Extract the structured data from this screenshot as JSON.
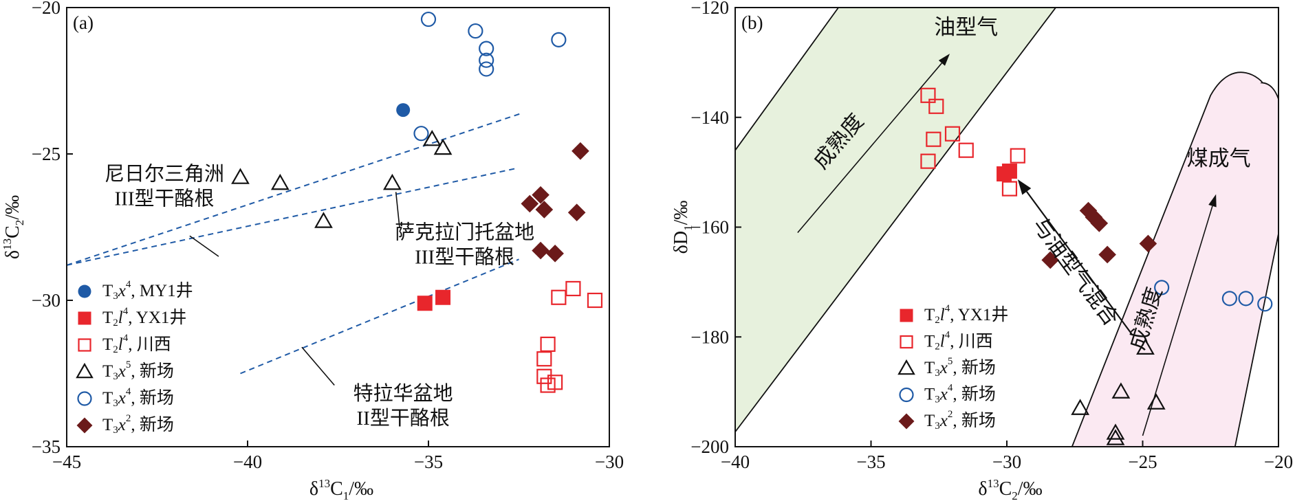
{
  "colors": {
    "blue": "#1f5aa6",
    "red": "#e8262c",
    "dark_red": "#6b1a1a",
    "black": "#111111",
    "oil_zone_fill": "#e7f1dd",
    "coal_zone_fill": "#fbe9f2"
  },
  "chart_data": [
    {
      "panel_label": "(a)",
      "type": "scatter",
      "xlabel": "δ13C1/‰",
      "ylabel": "δ13C2/‰",
      "xlim": [
        -45,
        -30
      ],
      "ylim": [
        -35,
        -20
      ],
      "x_ticks": [
        -45,
        -40,
        -35,
        -30
      ],
      "y_ticks": [
        -35,
        -30,
        -25,
        -20
      ],
      "grid": false,
      "legend_position": "bottom-left",
      "series": [
        {
          "name": "T3x4, MY1井",
          "marker": "filled-circle",
          "color": "#1f5aa6",
          "points": [
            [
              -35.7,
              -23.5
            ]
          ]
        },
        {
          "name": "T2l4, YX1井",
          "marker": "filled-square",
          "color": "#e8262c",
          "points": [
            [
              -35.1,
              -30.1
            ],
            [
              -34.6,
              -29.9
            ]
          ]
        },
        {
          "name": "T2l4, 川西",
          "marker": "open-square",
          "color": "#e8262c",
          "points": [
            [
              -31.4,
              -29.9
            ],
            [
              -31.0,
              -29.6
            ],
            [
              -30.4,
              -30.0
            ],
            [
              -31.7,
              -31.5
            ],
            [
              -31.8,
              -32.0
            ],
            [
              -31.8,
              -32.6
            ],
            [
              -31.7,
              -32.9
            ],
            [
              -31.5,
              -32.8
            ]
          ]
        },
        {
          "name": "T3x5, 新场",
          "marker": "open-triangle",
          "color": "#111111",
          "points": [
            [
              -40.2,
              -25.8
            ],
            [
              -39.1,
              -26.0
            ],
            [
              -36.0,
              -26.0
            ],
            [
              -37.9,
              -27.3
            ],
            [
              -34.9,
              -24.5
            ],
            [
              -34.6,
              -24.8
            ]
          ]
        },
        {
          "name": "T3x4, 新场",
          "marker": "open-circle",
          "color": "#1f5aa6",
          "points": [
            [
              -35.0,
              -20.4
            ],
            [
              -33.7,
              -20.8
            ],
            [
              -33.4,
              -21.4
            ],
            [
              -33.4,
              -21.8
            ],
            [
              -33.4,
              -22.1
            ],
            [
              -31.4,
              -21.1
            ],
            [
              -35.2,
              -24.3
            ]
          ]
        },
        {
          "name": "T3x2, 新场",
          "marker": "filled-diamond",
          "color": "#6b1a1a",
          "points": [
            [
              -30.8,
              -24.9
            ],
            [
              -32.2,
              -26.7
            ],
            [
              -31.9,
              -26.4
            ],
            [
              -31.8,
              -26.9
            ],
            [
              -30.9,
              -27.0
            ],
            [
              -31.9,
              -28.3
            ],
            [
              -31.5,
              -28.4
            ]
          ]
        }
      ],
      "lines": [
        {
          "points": [
            [
              -45,
              -28.8
            ],
            [
              -32.4,
              -23.6
            ]
          ]
        },
        {
          "points": [
            [
              -45,
              -28.8
            ],
            [
              -32.6,
              -25.5
            ]
          ]
        },
        {
          "points": [
            [
              -40.2,
              -32.5
            ],
            [
              -32.5,
              -28.6
            ]
          ]
        }
      ],
      "annotations": [
        {
          "text_lines": [
            "尼日尔三角洲",
            "III型干酪根"
          ],
          "anchor": [
            -42.3,
            -25.9
          ],
          "leader": [
            [
              -41.6,
              -27.8
            ],
            [
              -40.8,
              -28.5
            ]
          ]
        },
        {
          "text_lines": [
            "萨克拉门托盆地",
            "III型干酪根"
          ],
          "anchor": [
            -34.0,
            -27.9
          ],
          "leader": [
            [
              -35.9,
              -26.3
            ],
            [
              -35.8,
              -27.5
            ]
          ]
        },
        {
          "text_lines": [
            "特拉华盆地",
            "II型干酪根"
          ],
          "anchor": [
            -35.7,
            -33.4
          ],
          "leader": [
            [
              -38.5,
              -31.6
            ],
            [
              -37.6,
              -32.9
            ]
          ]
        }
      ],
      "legend": [
        {
          "marker": "filled-circle",
          "color": "#1f5aa6",
          "label": "MY1井"
        },
        {
          "marker": "filled-square",
          "color": "#e8262c",
          "label": "YX1井"
        },
        {
          "marker": "open-square",
          "color": "#e8262c",
          "label": "川西"
        },
        {
          "marker": "open-triangle",
          "color": "#111111",
          "label": "新场"
        },
        {
          "marker": "open-circle",
          "color": "#1f5aa6",
          "label": "新场"
        },
        {
          "marker": "filled-diamond",
          "color": "#6b1a1a",
          "label": "新场"
        }
      ]
    },
    {
      "panel_label": "(b)",
      "type": "scatter",
      "xlabel": "δ13C2/‰",
      "ylabel": "δD1/‰",
      "xlim": [
        -40,
        -20
      ],
      "ylim": [
        -200,
        -120
      ],
      "x_ticks": [
        -40,
        -35,
        -30,
        -25,
        -20
      ],
      "y_ticks": [
        -200,
        -180,
        -160,
        -140,
        -120
      ],
      "grid": false,
      "legend_position": "bottom-center",
      "regions": [
        {
          "label": "油型气",
          "fill": "#e7f1dd",
          "polygon": [
            [
              -40,
              -146
            ],
            [
              -36.2,
              -120
            ],
            [
              -28.2,
              -120
            ],
            [
              -40,
              -197.3
            ]
          ],
          "arrow_label": "成熟度",
          "arrow": [
            [
              -37.7,
              -161
            ],
            [
              -32.1,
              -128.4
            ]
          ]
        },
        {
          "label": "煤成气",
          "fill": "#fbe9f2",
          "polygon": [
            [
              -27.6,
              -200
            ],
            [
              -22.5,
              -136
            ],
            [
              -20,
              -138
            ],
            [
              -20,
              -161.2
            ],
            [
              -21.6,
              -200
            ]
          ],
          "arrow_label": "成熟度",
          "arrow": [
            [
              -25,
              -198
            ],
            [
              -22.3,
              -154
            ]
          ]
        }
      ],
      "mixing_arrow": {
        "label": "与油型气混合",
        "from": [
          -25.4,
          -179.5
        ],
        "to": [
          -29.6,
          -151.3
        ]
      },
      "series": [
        {
          "name": "T2l4, YX1井",
          "marker": "filled-square",
          "color": "#e8262c",
          "points": [
            [
              -30.1,
              -150.3
            ],
            [
              -29.9,
              -149.8
            ]
          ]
        },
        {
          "name": "T2l4, 川西",
          "marker": "open-square",
          "color": "#e8262c",
          "points": [
            [
              -32.9,
              -136.0
            ],
            [
              -32.6,
              -138.0
            ],
            [
              -32.7,
              -144.0
            ],
            [
              -32.0,
              -143.0
            ],
            [
              -31.5,
              -146.0
            ],
            [
              -32.9,
              -148.0
            ],
            [
              -29.6,
              -147.0
            ],
            [
              -29.9,
              -153.0
            ]
          ]
        },
        {
          "name": "T3x5, 新场",
          "marker": "open-triangle",
          "color": "#111111",
          "points": [
            [
              -27.3,
              -193.0
            ],
            [
              -26.0,
              -197.5
            ],
            [
              -26.0,
              -198.5
            ],
            [
              -25.8,
              -190.0
            ],
            [
              -24.9,
              -182.0
            ],
            [
              -24.5,
              -192.0
            ]
          ]
        },
        {
          "name": "T3x4, 新场",
          "marker": "open-circle",
          "color": "#1f5aa6",
          "points": [
            [
              -24.3,
              -171.0
            ],
            [
              -21.8,
              -173.0
            ],
            [
              -21.2,
              -173.0
            ],
            [
              -20.5,
              -174.0
            ]
          ]
        },
        {
          "name": "T3x2, 新场",
          "marker": "filled-diamond",
          "color": "#6b1a1a",
          "points": [
            [
              -27.0,
              -157.0
            ],
            [
              -26.8,
              -158.2
            ],
            [
              -26.6,
              -159.3
            ],
            [
              -26.3,
              -165.0
            ],
            [
              -28.4,
              -166.0
            ],
            [
              -24.8,
              -163.0
            ]
          ]
        }
      ],
      "legend": [
        {
          "marker": "filled-square",
          "color": "#e8262c",
          "label": "YX1井"
        },
        {
          "marker": "open-square",
          "color": "#e8262c",
          "label": "川西"
        },
        {
          "marker": "open-triangle",
          "color": "#111111",
          "label": "新场"
        },
        {
          "marker": "open-circle",
          "color": "#1f5aa6",
          "label": "新场"
        },
        {
          "marker": "filled-diamond",
          "color": "#6b1a1a",
          "label": "新场"
        }
      ]
    }
  ]
}
